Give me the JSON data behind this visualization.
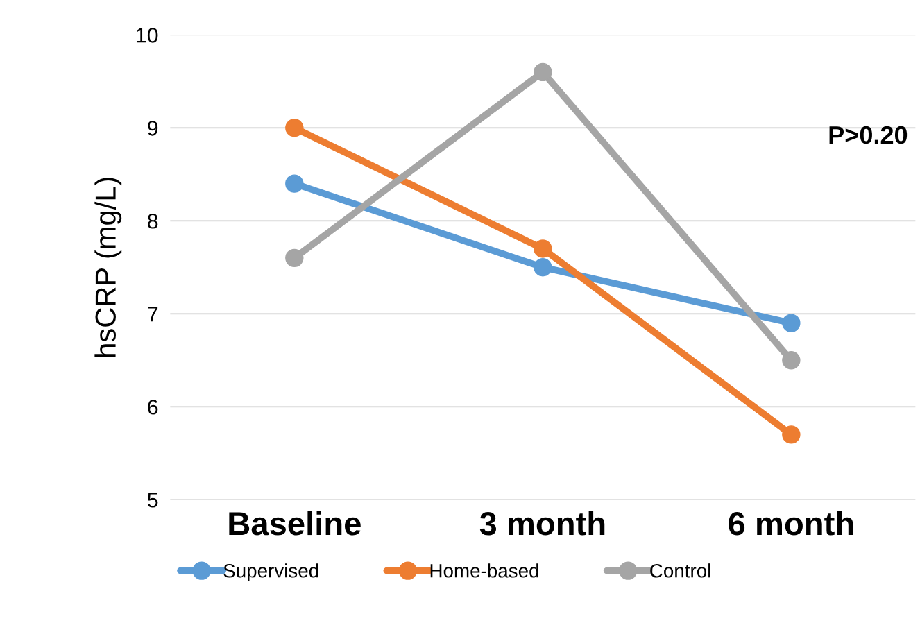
{
  "chart_data": {
    "type": "line",
    "ylabel": "hsCRP (mg/L)",
    "categories": [
      "Baseline",
      "3 month",
      "6 month"
    ],
    "series": [
      {
        "name": "Supervised",
        "color": "#5b9bd5",
        "values": [
          8.4,
          7.5,
          6.9
        ]
      },
      {
        "name": "Home-based",
        "color": "#ed7d31",
        "values": [
          9.0,
          7.7,
          5.7
        ]
      },
      {
        "name": "Control",
        "color": "#a5a5a5",
        "values": [
          7.6,
          9.6,
          6.5
        ]
      }
    ],
    "ylim": [
      5,
      10
    ],
    "yticks": [
      5,
      6,
      7,
      8,
      9,
      10
    ],
    "grid": "y",
    "legend": "bottom",
    "marker": "circle",
    "line_style": "solid",
    "annotations": [
      "P>0.20"
    ]
  }
}
